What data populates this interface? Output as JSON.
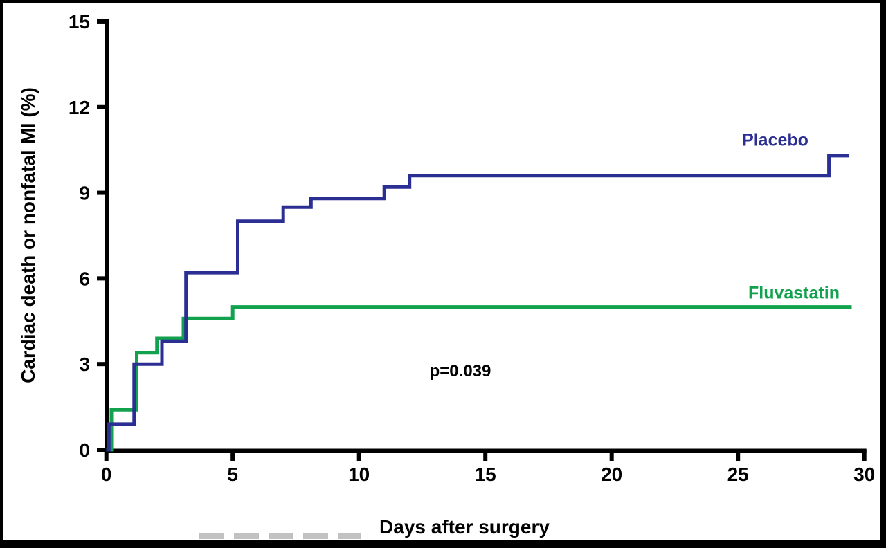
{
  "figure": {
    "background": "#ffffff",
    "border_color": "#000000"
  },
  "chart_data": {
    "type": "line",
    "variant": "kaplan-meier-step",
    "title": "",
    "xlabel": "Days after surgery",
    "ylabel": "Cardiac death or nonfatal MI (%)",
    "annotation": "p=0.039",
    "xlim": [
      0,
      30
    ],
    "ylim": [
      0,
      15
    ],
    "x_ticks": [
      0,
      5,
      10,
      15,
      20,
      25,
      30
    ],
    "y_ticks": [
      0,
      3,
      6,
      9,
      12,
      15
    ],
    "grid": false,
    "axis_color": "#000000",
    "text_color": "#000000",
    "legend_position": "labels-at-curve-right-ends",
    "series": [
      {
        "name": "Fluvastatin",
        "color": "#12a24e",
        "points": [
          [
            0,
            0
          ],
          [
            0.2,
            0
          ],
          [
            0.2,
            1.4
          ],
          [
            1.2,
            1.4
          ],
          [
            1.2,
            3.4
          ],
          [
            2.0,
            3.4
          ],
          [
            2.0,
            3.9
          ],
          [
            3.05,
            3.9
          ],
          [
            3.05,
            4.6
          ],
          [
            5.0,
            4.6
          ],
          [
            5.0,
            5.0
          ],
          [
            29.5,
            5.0
          ]
        ]
      },
      {
        "name": "Placebo",
        "color": "#2b2f94",
        "points": [
          [
            0,
            0
          ],
          [
            0.1,
            0
          ],
          [
            0.1,
            0.9
          ],
          [
            1.1,
            0.9
          ],
          [
            1.1,
            3.0
          ],
          [
            2.2,
            3.0
          ],
          [
            2.2,
            3.8
          ],
          [
            3.15,
            3.8
          ],
          [
            3.15,
            6.2
          ],
          [
            5.2,
            6.2
          ],
          [
            5.2,
            8.0
          ],
          [
            7.0,
            8.0
          ],
          [
            7.0,
            8.5
          ],
          [
            8.1,
            8.5
          ],
          [
            8.1,
            8.8
          ],
          [
            11.0,
            8.8
          ],
          [
            11.0,
            9.2
          ],
          [
            12.0,
            9.2
          ],
          [
            12.0,
            9.6
          ],
          [
            28.6,
            9.6
          ],
          [
            28.6,
            10.3
          ],
          [
            29.4,
            10.3
          ]
        ]
      }
    ]
  }
}
